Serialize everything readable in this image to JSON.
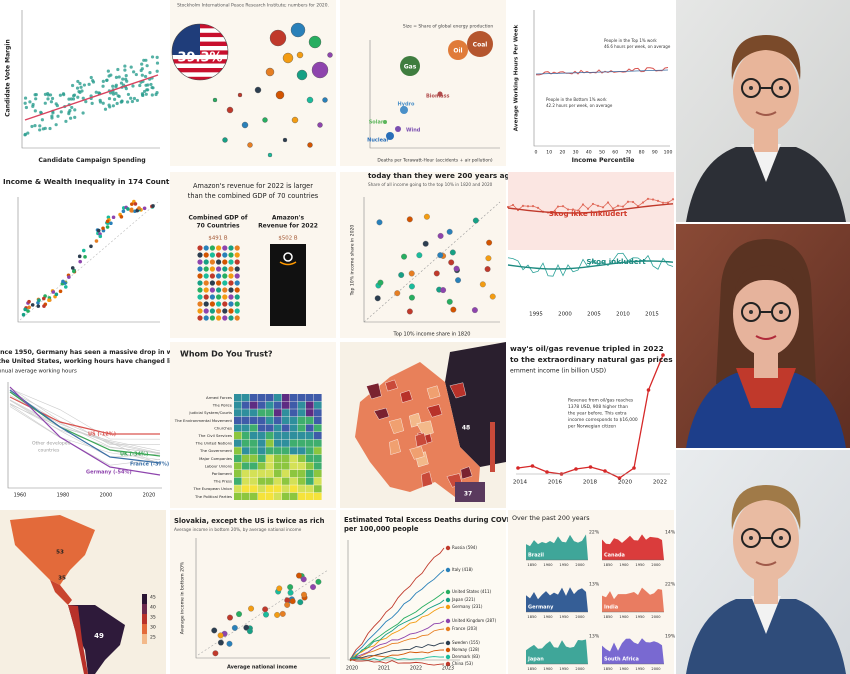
{
  "tiles": [
    {
      "labels": [
        "Candidate Vote Margin",
        "Candidate Campaign Spending"
      ]
    },
    {
      "labels": [
        "Stockholm International Peace Research Institute; numbers for 2020.",
        "39.3%"
      ]
    },
    {
      "labels": [
        "Size = Share of global energy production",
        "Coal",
        "Oil",
        "Gas",
        "Biomass",
        "Hydro",
        "Solar",
        "Wind",
        "Nuclear",
        "Deaths per Terawatt-Hour (accidents + air pollution)"
      ]
    },
    {
      "labels": [
        "Average Working Hours Per Week",
        "Income Percentile",
        "People in the Top 1% work",
        "46.6 hours per week, on average",
        "People in the Bottom 1% work",
        "42.2 hours per week, on average"
      ],
      "ticks": [
        "0",
        "10",
        "20",
        "30",
        "40",
        "50",
        "60",
        "70",
        "80",
        "90",
        "100"
      ]
    },
    {
      "labels": [
        "Income & Wealth Inequality in 174 Countries"
      ]
    },
    {
      "labels": [
        "Amazon's revenue for 2022 is larger",
        "than the combined GDP of 70 countries",
        "Combined GDP of",
        "70 Countries",
        "Amazon's",
        "Revenue for 2022",
        "$491 B",
        "$502 B"
      ]
    },
    {
      "labels": [
        "today than they were 200 years ago",
        "Share of all income going to the top 10% in 1820 and 2020",
        "Top 10% income share in 2020",
        "Top 10% income share in 1820"
      ]
    },
    {
      "labels": [
        "Skog ikke inkludert",
        "Skog inkludert"
      ],
      "ticks": [
        "1995",
        "2000",
        "2005",
        "2010",
        "2015"
      ]
    },
    {
      "labels": [
        "ince 1950, Germany has seen a massive drop in working hours",
        "the United States, working hours have changed little.",
        "nnual average working hours",
        "US (-12%)",
        "UK (-34%)",
        "France (-37%)",
        "Germany (-54%)",
        "Other developed",
        "countries"
      ],
      "ticks": [
        "1960",
        "1980",
        "2000",
        "2020"
      ]
    },
    {
      "labels": [
        "Whom Do You Trust?"
      ],
      "rows": [
        "Armed Forces",
        "The Police",
        "Judicial System/Courts",
        "The Environmental Movement",
        "Churches",
        "The Civil Services",
        "The United Nations",
        "The Government",
        "Major Companies",
        "Labour Unions",
        "Parliament",
        "The Press",
        "The European Union",
        "The Political Parties"
      ]
    },
    {
      "labels": [
        "48",
        "37"
      ]
    },
    {
      "labels": [
        "way's oil/gas revenue tripled in 2022",
        "to the extraordinary natural gas prices",
        "ernment income (in billion USD)",
        "Revenue from oil/gas reaches",
        "1378 USD, 908 higher than",
        "the year before. This extra",
        "income corresponds to $16,000",
        "per Norwegian citizen"
      ],
      "ticks": [
        "2014",
        "2016",
        "2018",
        "2020",
        "2022"
      ]
    },
    {
      "labels": [
        "53",
        "35",
        "49"
      ],
      "ticks": [
        "45",
        "40",
        "35",
        "30",
        "25"
      ]
    },
    {
      "labels": [
        "Slovakia, except the US is twice as rich",
        "Average income in bottom 20%, by average national income",
        "Average national income",
        "Average income in bottom 20%"
      ]
    },
    {
      "labels": [
        "Estimated Total Excess Deaths during COVID",
        "per 100,000 people",
        "Russia (594)",
        "Italy (418)",
        "United States (411)",
        "United Kingdom (287)",
        "Germany (231)",
        "Japan (221)",
        "France (203)",
        "Sweden (155)",
        "Norway (128)",
        "Denmark (83)",
        "China (53)"
      ],
      "ticks": [
        "2020",
        "2021",
        "2022",
        "2023"
      ]
    },
    {
      "labels": [
        "Over the past 200 years"
      ],
      "panels": [
        {
          "name": "Brazil",
          "pct": "22%"
        },
        {
          "name": "Canada",
          "pct": "14%"
        },
        {
          "name": "Germany",
          "pct": "13%"
        },
        {
          "name": "India",
          "pct": "22%"
        },
        {
          "name": "Japan",
          "pct": "13%"
        },
        {
          "name": "South Africa",
          "pct": "19%"
        }
      ],
      "ticks": [
        "1850",
        "1900",
        "1950",
        "2000"
      ]
    }
  ]
}
